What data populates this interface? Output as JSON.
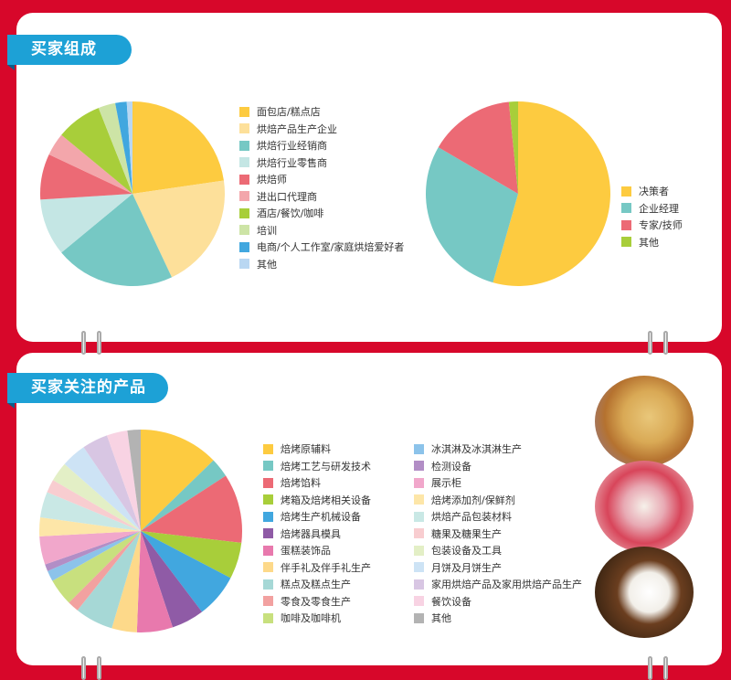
{
  "section1": {
    "title": "买家组成",
    "pie_left": {
      "chart_data": {
        "type": "pie",
        "categories": [
          "面包店/糕点店",
          "烘焙产品生产企业",
          "烘焙行业经销商",
          "烘焙行业零售商",
          "烘焙师",
          "进出口代理商",
          "酒店/餐饮/咖啡",
          "培训",
          "电商/个人工作室/家庭烘焙爱好者",
          "其他"
        ],
        "values": [
          22.7,
          20.3,
          21,
          10,
          8,
          4,
          8,
          3,
          2,
          1
        ],
        "colors": [
          "#fdcb40",
          "#fde09a",
          "#76c8c4",
          "#c4e6e4",
          "#ec6a75",
          "#f3a6ab",
          "#a8ce3a",
          "#cde4a6",
          "#41a7df",
          "#b9d7f2"
        ],
        "legend": "right"
      }
    },
    "pie_right": {
      "chart_data": {
        "type": "pie",
        "categories": [
          "决策者",
          "企业经理",
          "专家/技师",
          "其他"
        ],
        "values": [
          54.4,
          29,
          15,
          1.6
        ],
        "colors": [
          "#fdcb40",
          "#76c8c4",
          "#ec6a75",
          "#a8ce3a"
        ],
        "legend": "right"
      }
    }
  },
  "section2": {
    "title": "买家关注的产品",
    "pie": {
      "chart_data": {
        "type": "pie",
        "categories": [
          "焙烤原辅料",
          "焙烤工艺与研发技术",
          "焙烤馅料",
          "烤箱及焙烤相关设备",
          "焙烤生产机械设备",
          "焙烤器具模具",
          "蛋糕装饰品",
          "伴手礼及伴手礼生产",
          "糕点及糕点生产",
          "零食及零食生产",
          "咖啡及咖啡机",
          "冰淇淋及冰淇淋生产",
          "检测设备",
          "展示柜",
          "焙烤添加剂/保鲜剂",
          "烘焙产品包装材料",
          "糖果及糖果生产",
          "包装设备及工具",
          "月饼及月饼生产",
          "家用烘焙产品及家用烘焙产品生产",
          "餐饮设备",
          "其他"
        ],
        "values": [
          12.7,
          3.1,
          11,
          5.8,
          7,
          5.2,
          5.7,
          4,
          6.1,
          1.8,
          4.3,
          1.7,
          1.1,
          4.5,
          3,
          4.1,
          2.1,
          3.1,
          4,
          4.1,
          3.3,
          2.1
        ],
        "colors": [
          "#fdcb40",
          "#76c8c4",
          "#ec6a75",
          "#a8ce3a",
          "#41a7df",
          "#8f5ba6",
          "#e879ad",
          "#fdd98a",
          "#a6d8d6",
          "#f2a1a0",
          "#c8e07e",
          "#8cc3ea",
          "#b28ec6",
          "#f1a7cb",
          "#fde6a8",
          "#c9e8e5",
          "#f8cdd0",
          "#e3efc6",
          "#cde3f5",
          "#d8c6e3",
          "#f8d3e3",
          "#b3b3b3"
        ],
        "legend": "right"
      }
    },
    "photos": [
      "mooncake-photo",
      "pastry-photo",
      "coffee-photo"
    ]
  }
}
